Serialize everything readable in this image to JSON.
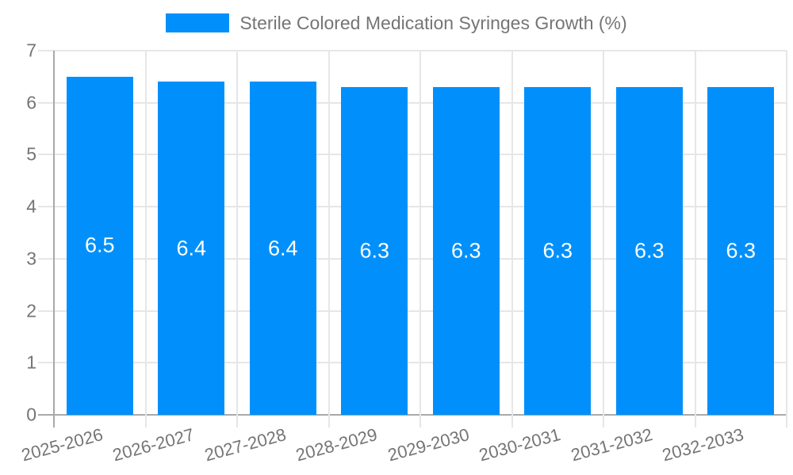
{
  "chart_data": {
    "type": "bar",
    "title": "Sterile Colored Medication Syringes Growth (%)",
    "categories": [
      "2025-2026",
      "2026-2027",
      "2027-2028",
      "2028-2029",
      "2029-2030",
      "2030-2031",
      "2031-2032",
      "2032-2033"
    ],
    "values": [
      6.5,
      6.4,
      6.4,
      6.3,
      6.3,
      6.3,
      6.3,
      6.3
    ],
    "labels": [
      "6.5",
      "6.4",
      "6.4",
      "6.3",
      "6.3",
      "6.3",
      "6.3",
      "6.3"
    ],
    "xlabel": "",
    "ylabel": "",
    "ylim": [
      0,
      7
    ],
    "yticks": [
      0,
      1,
      2,
      3,
      4,
      5,
      6,
      7
    ],
    "grid": true,
    "legend_position": "top-center",
    "colors": {
      "bar": "#0190FB",
      "grid": "#E6E6E6",
      "axis": "#A9A9A9",
      "text": "#757575",
      "value_label": "#FFFFFF",
      "background": "#FFFFFF"
    }
  }
}
